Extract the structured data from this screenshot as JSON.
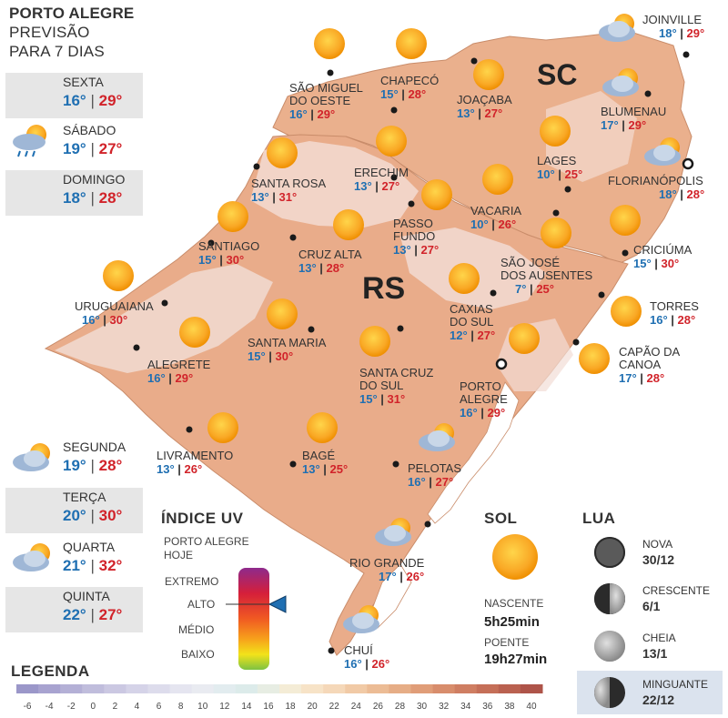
{
  "header": {
    "line1": "PORTO ALEGRE",
    "line2": "PREVISÃO",
    "line3": "PARA 7 DIAS"
  },
  "forecast": [
    {
      "day": "SEXTA",
      "min": "16°",
      "max": "29°",
      "icon": "sun-icon"
    },
    {
      "day": "SÁBADO",
      "min": "19°",
      "max": "27°",
      "icon": "sun-cloud-rain-icon"
    },
    {
      "day": "DOMINGO",
      "min": "18°",
      "max": "28°",
      "icon": "sun-cloud-icon"
    },
    {
      "day": "SEGUNDA",
      "min": "19°",
      "max": "28°",
      "icon": "sun-cloud-icon"
    },
    {
      "day": "TERÇA",
      "min": "20°",
      "max": "30°",
      "icon": "sun-cloud-icon"
    },
    {
      "day": "QUARTA",
      "min": "21°",
      "max": "32°",
      "icon": "sun-cloud-icon"
    },
    {
      "day": "QUINTA",
      "min": "22°",
      "max": "27°",
      "icon": "sun-cloud-icon"
    }
  ],
  "map": {
    "region_labels": {
      "sc": "SC",
      "rs": "RS"
    },
    "cities": [
      {
        "name": "SÃO MIGUEL",
        "name2": "DO OESTE",
        "min": "16°",
        "max": "29°",
        "icon": "sun-icon"
      },
      {
        "name": "CHAPECÓ",
        "min": "15°",
        "max": "28°",
        "icon": "sun-icon"
      },
      {
        "name": "JOAÇABA",
        "min": "13°",
        "max": "27°",
        "icon": "sun-icon"
      },
      {
        "name": "JOINVILLE",
        "min": "18°",
        "max": "29°",
        "icon": "sun-cloud-icon"
      },
      {
        "name": "BLUMENAU",
        "min": "17°",
        "max": "29°",
        "icon": "sun-cloud-icon"
      },
      {
        "name": "LAGES",
        "min": "10°",
        "max": "25°",
        "icon": "sun-icon"
      },
      {
        "name": "FLORIANÓPOLIS",
        "min": "18°",
        "max": "28°",
        "icon": "sun-cloud-icon"
      },
      {
        "name": "SANTA ROSA",
        "min": "13°",
        "max": "31°",
        "icon": "sun-icon"
      },
      {
        "name": "ERECHIM",
        "min": "13°",
        "max": "27°",
        "icon": "sun-icon"
      },
      {
        "name": "VACARIA",
        "min": "10°",
        "max": "26°",
        "icon": "sun-icon"
      },
      {
        "name": "PASSO",
        "name2": "FUNDO",
        "min": "13°",
        "max": "27°",
        "icon": "sun-icon"
      },
      {
        "name": "SANTIAGO",
        "min": "15°",
        "max": "30°",
        "icon": "sun-icon"
      },
      {
        "name": "CRUZ ALTA",
        "min": "13°",
        "max": "28°",
        "icon": "sun-icon"
      },
      {
        "name": "SÃO JOSÉ",
        "name2": "DOS AUSENTES",
        "min": "7°",
        "max": "25°",
        "icon": "sun-icon"
      },
      {
        "name": "CRICIÚMA",
        "min": "15°",
        "max": "30°",
        "icon": "sun-icon"
      },
      {
        "name": "URUGUAIANA",
        "min": "16°",
        "max": "30°",
        "icon": "sun-icon"
      },
      {
        "name": "CAXIAS",
        "name2": "DO SUL",
        "min": "12°",
        "max": "27°",
        "icon": "sun-icon"
      },
      {
        "name": "TORRES",
        "min": "16°",
        "max": "28°",
        "icon": "sun-icon"
      },
      {
        "name": "SANTA MARIA",
        "min": "15°",
        "max": "30°",
        "icon": "sun-icon"
      },
      {
        "name": "ALEGRETE",
        "min": "16°",
        "max": "29°",
        "icon": "sun-icon"
      },
      {
        "name": "CAPÃO DA",
        "name2": "CANOA",
        "min": "17°",
        "max": "28°",
        "icon": "sun-icon"
      },
      {
        "name": "SANTA CRUZ",
        "name2": "DO SUL",
        "min": "15°",
        "max": "31°",
        "icon": "sun-icon"
      },
      {
        "name": "PORTO",
        "name2": "ALEGRE",
        "min": "16°",
        "max": "29°",
        "icon": "sun-icon"
      },
      {
        "name": "LIVRAMENTO",
        "min": "13°",
        "max": "26°",
        "icon": "sun-icon"
      },
      {
        "name": "BAGÉ",
        "min": "13°",
        "max": "25°",
        "icon": "sun-icon"
      },
      {
        "name": "PELOTAS",
        "min": "16°",
        "max": "27°",
        "icon": "sun-cloud-icon"
      },
      {
        "name": "RIO GRANDE",
        "min": "17°",
        "max": "26°",
        "icon": "sun-cloud-icon"
      },
      {
        "name": "CHUÍ",
        "min": "16°",
        "max": "26°",
        "icon": "sun-cloud-icon"
      }
    ]
  },
  "uv": {
    "title": "ÍNDICE UV",
    "subtitle1": "PORTO ALEGRE",
    "subtitle2": "HOJE",
    "levels": [
      "EXTREMO",
      "ALTO",
      "MÉDIO",
      "BAIXO"
    ],
    "current_level": "ALTO"
  },
  "sun": {
    "title": "SOL",
    "sunrise_label": "NASCENTE",
    "sunrise": "5h25min",
    "sunset_label": "POENTE",
    "sunset": "19h27min"
  },
  "moon": {
    "title": "LUA",
    "phases": [
      {
        "name": "NOVA",
        "date": "30/12",
        "icon": "new-moon-icon"
      },
      {
        "name": "CRESCENTE",
        "date": "6/1",
        "icon": "first-quarter-moon-icon"
      },
      {
        "name": "CHEIA",
        "date": "13/1",
        "icon": "full-moon-icon"
      },
      {
        "name": "MINGUANTE",
        "date": "22/12",
        "icon": "last-quarter-moon-icon",
        "highlighted": true
      }
    ]
  },
  "legend": {
    "title": "LEGENDA",
    "ticks": [
      "-6",
      "-4",
      "-2",
      "0",
      "2",
      "4",
      "6",
      "8",
      "10",
      "12",
      "14",
      "16",
      "18",
      "20",
      "22",
      "24",
      "26",
      "28",
      "30",
      "32",
      "34",
      "36",
      "38",
      "40"
    ],
    "colors": [
      "#9b97c9",
      "#a8a3d0",
      "#b4b0d6",
      "#c0bddc",
      "#cbc8e2",
      "#d5d3e8",
      "#dddcec",
      "#e5e5f0",
      "#e9ebf1",
      "#e2ecef",
      "#dcebea",
      "#e7ede3",
      "#f4ecd6",
      "#f7e3c7",
      "#f5d8b9",
      "#f1caa6",
      "#ecbc95",
      "#e6ad86",
      "#e09d78",
      "#d88d6c",
      "#cf7e62",
      "#c56f58",
      "#ba6150",
      "#ae5449"
    ]
  },
  "colors": {
    "low_temp": "#1f6fb2",
    "high_temp": "#d1232a",
    "map_warm": "#e7a987",
    "map_light": "#f1dcd3",
    "sea": "#ffffff"
  }
}
